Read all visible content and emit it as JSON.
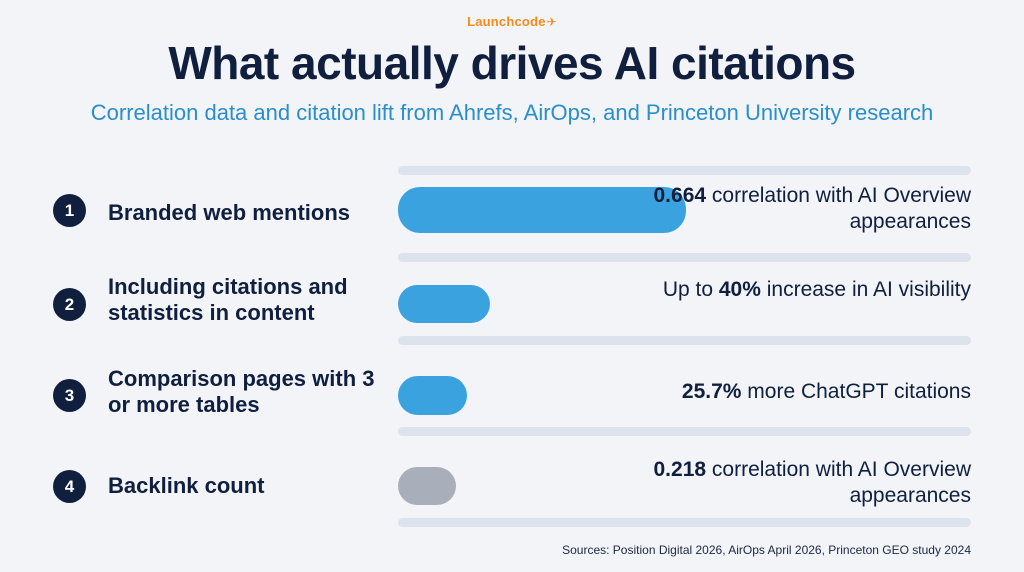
{
  "brand": {
    "name": "Launchcode",
    "mark": "✈"
  },
  "header": {
    "title": "What actually drives AI citations",
    "subtitle": "Correlation data and citation lift from Ahrefs, AirOps, and Princeton University research"
  },
  "colors": {
    "background": "#f2f4f8",
    "navy": "#0f1f3d",
    "accent_blue": "#3aa3df",
    "muted_gray": "#a9afba",
    "brand_orange": "#f28c1a",
    "subtitle_blue": "#2a8ecb"
  },
  "chart_data": {
    "type": "bar",
    "orientation": "horizontal",
    "categories": [
      "Branded web mentions",
      "Including citations and statistics in content",
      "Comparison pages with 3 or more tables",
      "Backlink count"
    ],
    "values": [
      1.0,
      0.32,
      0.24,
      0.2
    ],
    "grid": false
  },
  "rows": [
    {
      "number": "1",
      "label": "Branded web mentions",
      "stat_pre": "",
      "stat_bold": "0.664",
      "stat_post": " correlation with AI Overview appearances",
      "bar_color": "#3aa3df"
    },
    {
      "number": "2",
      "label": "Including citations and statistics in content",
      "stat_pre": "Up to ",
      "stat_bold": "40%",
      "stat_post": " increase in AI visibility",
      "bar_color": "#3aa3df"
    },
    {
      "number": "3",
      "label": "Comparison pages with 3 or more tables",
      "stat_pre": "",
      "stat_bold": "25.7%",
      "stat_post": " more ChatGPT citations",
      "bar_color": "#3aa3df"
    },
    {
      "number": "4",
      "label": "Backlink count",
      "stat_pre": "",
      "stat_bold": "0.218",
      "stat_post": " correlation with AI Overview appearances",
      "bar_color": "#a9afba"
    }
  ],
  "footer": {
    "sources": "Sources: Position Digital 2026, AirOps April 2026, Princeton GEO study 2024"
  }
}
